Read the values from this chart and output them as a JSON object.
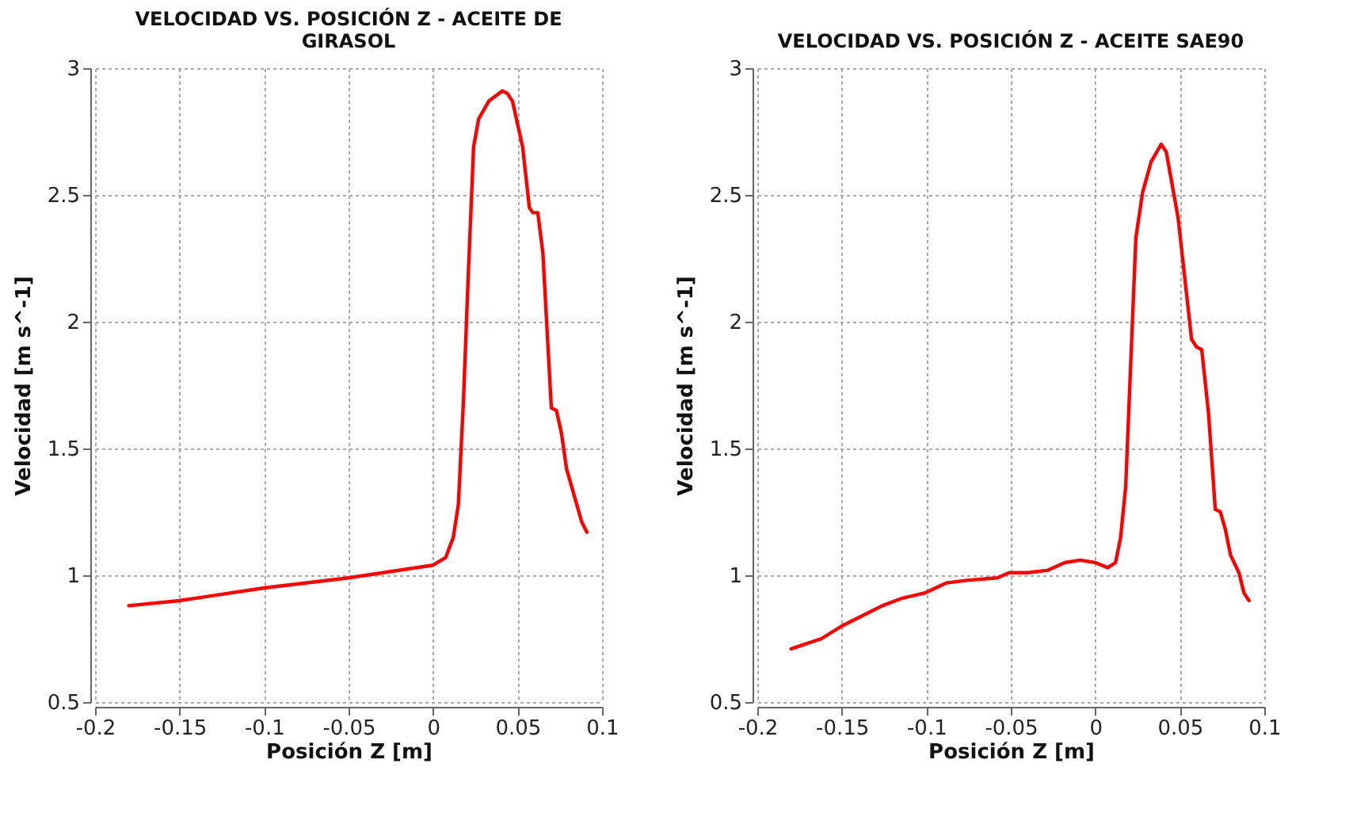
{
  "chart_data": [
    {
      "type": "line",
      "title": "VELOCIDAD VS. POSICIÓN Z - ACEITE DE GIRASOL",
      "xlabel": "Posición Z [m]",
      "ylabel": "Velocidad [m s^-1]",
      "xlim": [
        -0.2,
        0.1
      ],
      "ylim": [
        0.5,
        3
      ],
      "xticks": [
        -0.2,
        -0.15,
        -0.1,
        -0.05,
        0,
        0.05,
        0.1
      ],
      "yticks": [
        0.5,
        1,
        1.5,
        2,
        2.5,
        3
      ],
      "grid": true,
      "line_style": "solid",
      "series": [
        {
          "color": "#ff0000",
          "x": [
            -0.18,
            -0.15,
            -0.1,
            -0.05,
            0,
            0.0075,
            0.012,
            0.015,
            0.018,
            0.021,
            0.024,
            0.027,
            0.033,
            0.041,
            0.044,
            0.047,
            0.053,
            0.057,
            0.059,
            0.062,
            0.065,
            0.07,
            0.073,
            0.076,
            0.079,
            0.085,
            0.088,
            0.091
          ],
          "values": [
            0.88,
            0.9,
            0.95,
            0.99,
            1.04,
            1.07,
            1.15,
            1.28,
            1.69,
            2.21,
            2.69,
            2.8,
            2.87,
            2.91,
            2.9,
            2.87,
            2.69,
            2.45,
            2.43,
            2.43,
            2.27,
            1.66,
            1.65,
            1.56,
            1.42,
            1.28,
            1.21,
            1.17
          ]
        }
      ]
    },
    {
      "type": "line",
      "title": "VELOCIDAD VS. POSICIÓN Z - ACEITE SAE90",
      "xlabel": "Posición Z [m]",
      "ylabel": "Velocidad [m s^-1]",
      "xlim": [
        -0.2,
        0.1
      ],
      "ylim": [
        0.5,
        3
      ],
      "xticks": [
        -0.2,
        -0.15,
        -0.1,
        -0.05,
        0,
        0.05,
        0.1
      ],
      "yticks": [
        0.5,
        1,
        1.5,
        2,
        2.5,
        3
      ],
      "grid": true,
      "line_style": "solid",
      "series": [
        {
          "color": "#ff0000",
          "x": [
            -0.18,
            -0.171,
            -0.162,
            -0.15,
            -0.138,
            -0.126,
            -0.114,
            -0.101,
            -0.088,
            -0.076,
            -0.058,
            -0.051,
            -0.04,
            -0.028,
            -0.018,
            -0.009,
            0,
            0.0074,
            0.012,
            0.015,
            0.018,
            0.021,
            0.024,
            0.028,
            0.033,
            0.039,
            0.042,
            0.049,
            0.057,
            0.06,
            0.063,
            0.067,
            0.071,
            0.074,
            0.077,
            0.08,
            0.085,
            0.088,
            0.091
          ],
          "values": [
            0.71,
            0.73,
            0.75,
            0.8,
            0.84,
            0.88,
            0.91,
            0.93,
            0.97,
            0.98,
            0.99,
            1.01,
            1.01,
            1.02,
            1.05,
            1.06,
            1.05,
            1.03,
            1.05,
            1.15,
            1.35,
            1.84,
            2.33,
            2.51,
            2.63,
            2.7,
            2.67,
            2.41,
            1.93,
            1.9,
            1.89,
            1.64,
            1.26,
            1.25,
            1.18,
            1.08,
            1.01,
            0.93,
            0.9
          ]
        }
      ]
    }
  ]
}
